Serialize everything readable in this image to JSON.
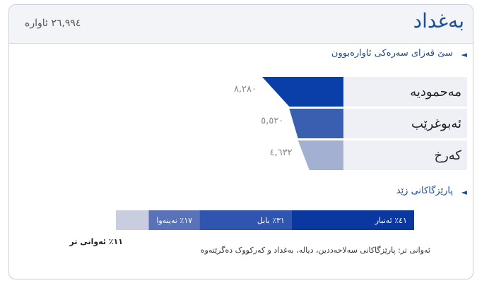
{
  "header": {
    "title": "بەغداد",
    "total": "٢٦,٩٩٤ ئاوارە"
  },
  "districts": {
    "heading": "سێ قەزای سەرەکی ئاوارەبوون",
    "rows": [
      {
        "name": "مەحمودیە",
        "value": 8280,
        "label": "٨,٢٨٠"
      },
      {
        "name": "ئەبوغرێب",
        "value": 5520,
        "label": "٥,٥٢٠"
      },
      {
        "name": "کەرخ",
        "value": 4632,
        "label": "٤,٦٣٢"
      }
    ]
  },
  "origins": {
    "heading": "پارێزگاکانی زێد",
    "segments": [
      {
        "value": 41,
        "label": "٤١٪ ئەنبار",
        "color": "#0a38a0"
      },
      {
        "value": 31,
        "label": "٣١٪ بابل",
        "color": "#2f55b0"
      },
      {
        "value": 17,
        "label": "١٧٪ نەینەوا",
        "color": "#5a73b8"
      },
      {
        "value": 11,
        "label": "١١٪ ئەوانی تر",
        "color": "#c8cde0"
      }
    ],
    "note": "ئەوانی تر: پارێزگاکانی سەلاحەددین، دیالە، بەغداد و کەرکووک  دەگرێتەوە"
  }
}
